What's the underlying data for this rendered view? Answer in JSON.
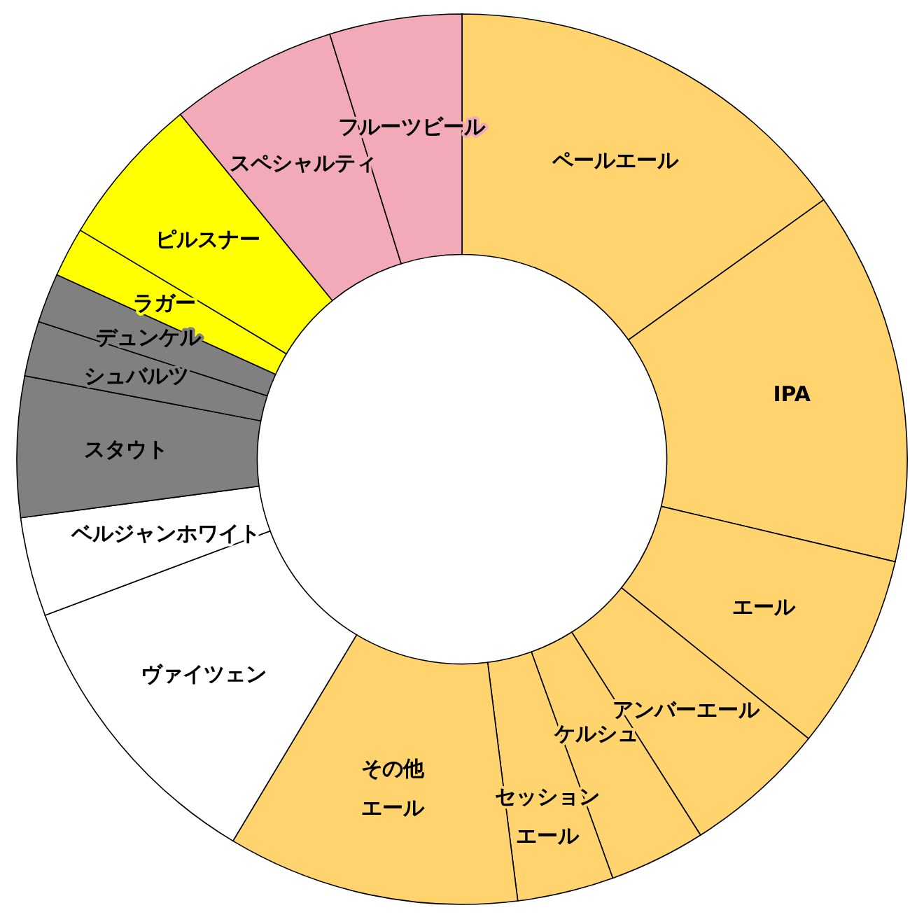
{
  "chart_data": {
    "type": "donut",
    "categories": [
      "ペールエール",
      "IPA",
      "エール",
      "アンバーエール",
      "ケルシュ",
      "セッションエール",
      "その他エール",
      "ヴァイツェン",
      "ベルジャンホワイト",
      "スタウト",
      "シュバルツ",
      "デュンケル",
      "ラガー",
      "ピルスナー",
      "スペシャルティ",
      "フルーツビール"
    ],
    "values": [
      15.1,
      13.6,
      7.1,
      5.2,
      3.5,
      3.5,
      10.6,
      10.7,
      3.6,
      5.1,
      2.0,
      1.8,
      1.8,
      5.5,
      6.1,
      4.8
    ],
    "colors": [
      "#ffd36e",
      "#ffd36e",
      "#ffd36e",
      "#ffd36e",
      "#ffd36e",
      "#ffd36e",
      "#ffd36e",
      "#ffffff",
      "#ffffff",
      "#808080",
      "#808080",
      "#808080",
      "#ffff00",
      "#ffff00",
      "#f2aab8",
      "#f2aab8"
    ]
  }
}
